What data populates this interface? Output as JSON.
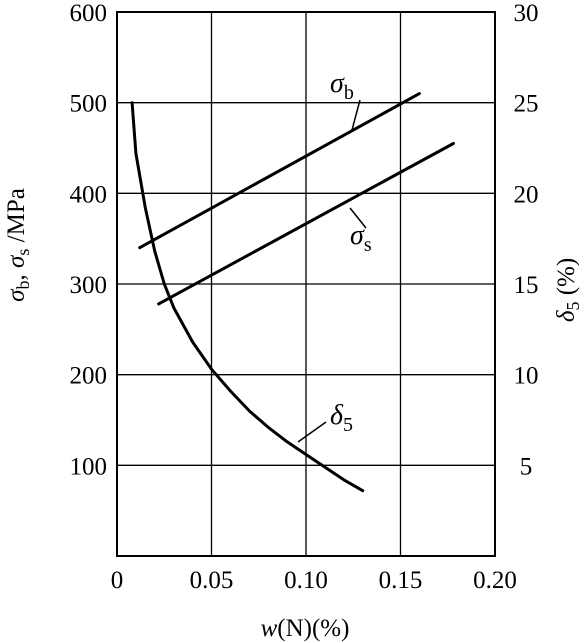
{
  "chart_data": {
    "type": "line",
    "xlabel_var": "w",
    "xlabel_rest": "(N)(%)",
    "ylabel_left": {
      "sym1": "σ",
      "sub1": "b",
      "sep": ", ",
      "sym2": "σ",
      "sub2": "s",
      "unit": " /MPa"
    },
    "ylabel_right": {
      "sym": "δ",
      "sub": "5",
      "unit": " (%)"
    },
    "xlim": [
      0,
      0.2
    ],
    "ylim_left": [
      0,
      600
    ],
    "ylim_right": [
      0,
      30
    ],
    "x_ticks": [
      "0",
      "0.05",
      "0.10",
      "0.15",
      "0.20"
    ],
    "x_tick_values": [
      0,
      0.05,
      0.1,
      0.15,
      0.2
    ],
    "y_left_ticks": [
      "100",
      "200",
      "300",
      "400",
      "500",
      "600"
    ],
    "y_left_tick_values": [
      100,
      200,
      300,
      400,
      500,
      600
    ],
    "y_right_ticks": [
      "5",
      "10",
      "15",
      "20",
      "25",
      "30"
    ],
    "y_right_tick_values": [
      5,
      10,
      15,
      20,
      25,
      30
    ],
    "grid": true,
    "series": [
      {
        "name": "σb",
        "label_sym": "σ",
        "label_sub": "b",
        "axis": "left",
        "x": [
          0.012,
          0.16
        ],
        "y": [
          340,
          510
        ]
      },
      {
        "name": "σs",
        "label_sym": "σ",
        "label_sub": "s",
        "axis": "left",
        "x": [
          0.022,
          0.178
        ],
        "y": [
          278,
          455
        ]
      },
      {
        "name": "δ5",
        "label_sym": "δ",
        "label_sub": "5",
        "axis": "right",
        "x": [
          0.008,
          0.01,
          0.015,
          0.02,
          0.025,
          0.03,
          0.04,
          0.05,
          0.06,
          0.07,
          0.08,
          0.09,
          0.1,
          0.11,
          0.12,
          0.13
        ],
        "y": [
          25,
          22.2,
          19.2,
          16.8,
          15.0,
          13.7,
          11.8,
          10.3,
          9.1,
          8.0,
          7.1,
          6.3,
          5.6,
          4.9,
          4.2,
          3.6
        ]
      }
    ]
  }
}
